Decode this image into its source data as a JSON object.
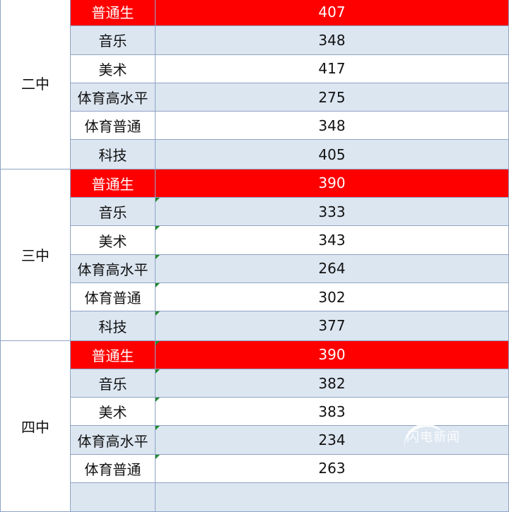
{
  "colors": {
    "highlight": "#ff0000",
    "band": "#dce6f1",
    "border": "#8fa3c4"
  },
  "groups": [
    {
      "school": "二中",
      "rows": [
        {
          "category": "普通生",
          "score": "407",
          "style": "red"
        },
        {
          "category": "音乐",
          "score": "348",
          "style": "blue"
        },
        {
          "category": "美术",
          "score": "417",
          "style": "white"
        },
        {
          "category": "体育高水平",
          "score": "275",
          "style": "blue"
        },
        {
          "category": "体育普通",
          "score": "348",
          "style": "white"
        },
        {
          "category": "科技",
          "score": "405",
          "style": "blue"
        }
      ]
    },
    {
      "school": "三中",
      "rows": [
        {
          "category": "普通生",
          "score": "390",
          "style": "red"
        },
        {
          "category": "音乐",
          "score": "333",
          "style": "blue",
          "flag": true
        },
        {
          "category": "美术",
          "score": "343",
          "style": "white",
          "flag": true
        },
        {
          "category": "体育高水平",
          "score": "264",
          "style": "blue",
          "flag": true
        },
        {
          "category": "体育普通",
          "score": "302",
          "style": "white",
          "flag": true
        },
        {
          "category": "科技",
          "score": "377",
          "style": "blue",
          "flag": true
        }
      ]
    },
    {
      "school": "四中",
      "rows": [
        {
          "category": "普通生",
          "score": "390",
          "style": "red",
          "flag": true
        },
        {
          "category": "音乐",
          "score": "382",
          "style": "blue",
          "flag": true
        },
        {
          "category": "美术",
          "score": "383",
          "style": "white",
          "flag": true
        },
        {
          "category": "体育高水平",
          "score": "234",
          "style": "blue",
          "flag": true
        },
        {
          "category": "体育普通",
          "score": "263",
          "style": "white",
          "flag": true
        },
        {
          "category": "",
          "score": "",
          "style": "blue"
        }
      ]
    }
  ],
  "watermark": "闪电新闻"
}
